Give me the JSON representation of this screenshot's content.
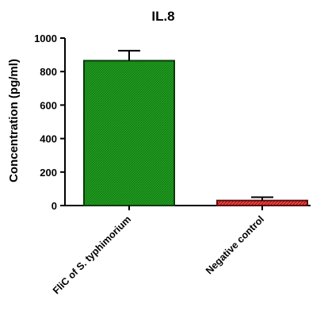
{
  "chart_data": {
    "type": "bar",
    "title": "IL.8",
    "xlabel": "",
    "ylabel": "Concentration (pg/ml)",
    "ylim": [
      0,
      1000
    ],
    "yticks": [
      "0",
      "200",
      "400",
      "600",
      "800",
      "1000"
    ],
    "categories": [
      "FliC of S. typhimorium",
      "Negative control"
    ],
    "values": [
      865,
      30
    ],
    "errors": [
      60,
      20
    ],
    "colors": {
      "bar1_fill": "#1f9e1f",
      "bar1_stroke": "#0a3a0a",
      "bar2_fill": "#ff3a3a",
      "bar2_stroke": "#5a1010",
      "axis": "#000000"
    },
    "grid": false
  }
}
